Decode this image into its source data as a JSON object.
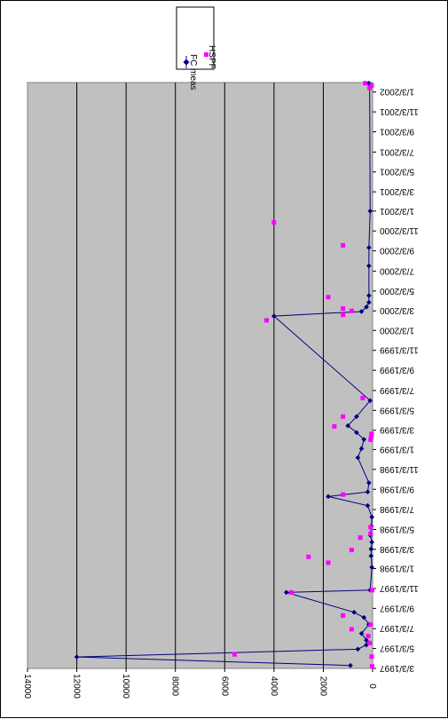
{
  "chart_data": {
    "type": "line",
    "orientation": "rotated-90-clockwise",
    "title": "",
    "xlabel": "",
    "ylabel": "",
    "ylim": [
      0,
      14000
    ],
    "y_ticks": [
      0,
      2000,
      4000,
      6000,
      8000,
      10000,
      12000,
      14000
    ],
    "x_tick_labels": [
      "3/3/1997",
      "5/3/1997",
      "7/3/1997",
      "9/3/1997",
      "11/3/1997",
      "1/3/1998",
      "3/3/1998",
      "5/3/1998",
      "7/3/1998",
      "9/3/1998",
      "11/3/1998",
      "1/3/1999",
      "3/3/1999",
      "5/3/1999",
      "7/3/1999",
      "9/3/1999",
      "11/3/1999",
      "1/3/2000",
      "3/3/2000",
      "5/3/2000",
      "7/3/2000",
      "9/3/2000",
      "11/3/2000",
      "1/3/2001",
      "3/3/2001",
      "5/3/2001",
      "7/3/2001",
      "9/3/2001",
      "11/3/2001",
      "1/3/2002"
    ],
    "x_range": [
      "3/3/1997",
      "2/1/2002"
    ],
    "grid": "horizontal major gridlines",
    "plot_background": "#c0c0c0",
    "legend": {
      "placement": "top-right",
      "entries": [
        {
          "label": "FC meas",
          "color": "#000080",
          "marker": "diamond-line"
        },
        {
          "label": "HSPF",
          "color": "#ff00ff",
          "marker": "square"
        }
      ]
    },
    "series": [
      {
        "name": "FC meas",
        "color": "#000080",
        "points": [
          [
            "3/12/1997",
            900
          ],
          [
            "4/7/1997",
            12000
          ],
          [
            "5/1/1997",
            600
          ],
          [
            "5/14/1997",
            250
          ],
          [
            "5/28/1997",
            250
          ],
          [
            "6/18/1997",
            450
          ],
          [
            "7/16/1997",
            150
          ],
          [
            "8/6/1997",
            350
          ],
          [
            "8/22/1997",
            750
          ],
          [
            "10/22/1997",
            3500
          ],
          [
            "10/29/1997",
            100
          ],
          [
            "1/7/1998",
            30
          ],
          [
            "2/11/1998",
            60
          ],
          [
            "3/4/1998",
            60
          ],
          [
            "3/25/1998",
            30
          ],
          [
            "4/15/1998",
            90
          ],
          [
            "5/13/1998",
            50
          ],
          [
            "6/10/1998",
            30
          ],
          [
            "7/15/1998",
            200
          ],
          [
            "8/12/1998",
            1800
          ],
          [
            "8/26/1998",
            200
          ],
          [
            "9/23/1998",
            150
          ],
          [
            "12/9/1998",
            600
          ],
          [
            "1/6/1999",
            450
          ],
          [
            "2/3/1999",
            350
          ],
          [
            "2/24/1999",
            650
          ],
          [
            "3/17/1999",
            1000
          ],
          [
            "4/14/1999",
            650
          ],
          [
            "6/2/1999",
            100
          ],
          [
            "2/16/2000",
            4000
          ],
          [
            "3/1/2000",
            450
          ],
          [
            "3/15/2000",
            250
          ],
          [
            "3/29/2000",
            150
          ],
          [
            "4/19/2000",
            150
          ],
          [
            "7/19/2000",
            150
          ],
          [
            "9/13/2000",
            150
          ],
          [
            "1/3/2001",
            100
          ],
          [
            "1/16/2002",
            120
          ],
          [
            "1/23/2002",
            80
          ],
          [
            "1/30/2002",
            150
          ]
        ]
      },
      {
        "name": "HSPF",
        "color": "#ff00ff",
        "points": [
          [
            "3/9/1997",
            20
          ],
          [
            "4/8/1997",
            40
          ],
          [
            "4/15/1997",
            5600
          ],
          [
            "5/20/1997",
            120
          ],
          [
            "6/10/1997",
            180
          ],
          [
            "7/1/1997",
            850
          ],
          [
            "7/15/1997",
            80
          ],
          [
            "8/12/1997",
            1200
          ],
          [
            "10/22/1997",
            3300
          ],
          [
            "10/29/1997",
            20
          ],
          [
            "1/21/1998",
            1800
          ],
          [
            "2/8/1998",
            2600
          ],
          [
            "3/1/1998",
            850
          ],
          [
            "4/8/1998",
            500
          ],
          [
            "4/20/1998",
            80
          ],
          [
            "5/10/1998",
            80
          ],
          [
            "8/18/1998",
            1200
          ],
          [
            "2/2/1999",
            80
          ],
          [
            "2/10/1999",
            60
          ],
          [
            "2/20/1999",
            40
          ],
          [
            "3/15/1999",
            1550
          ],
          [
            "4/14/1999",
            1200
          ],
          [
            "6/10/1999",
            400
          ],
          [
            "2/3/2000",
            4300
          ],
          [
            "2/20/2000",
            1200
          ],
          [
            "3/3/2000",
            850
          ],
          [
            "3/10/2000",
            1200
          ],
          [
            "4/14/2000",
            1800
          ],
          [
            "9/20/2000",
            1200
          ],
          [
            "11/29/2000",
            4000
          ],
          [
            "1/16/2002",
            120
          ],
          [
            "1/23/2002",
            40
          ],
          [
            "1/30/2002",
            300
          ]
        ]
      }
    ]
  }
}
